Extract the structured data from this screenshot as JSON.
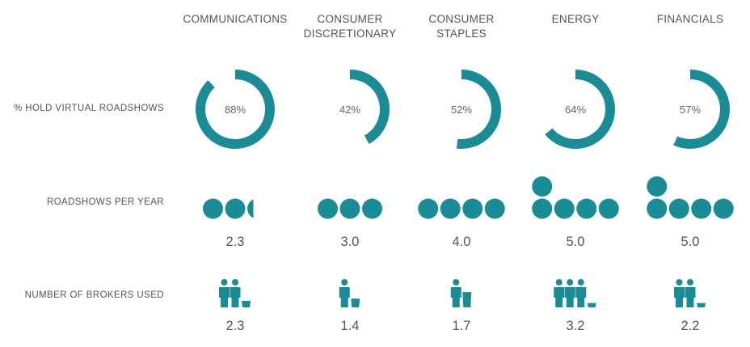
{
  "chart_data": {
    "type": "infographic",
    "accent_color": "#1a8c96",
    "sectors": [
      "COMMUNICATIONS",
      "CONSUMER\nDISCRETIONARY",
      "CONSUMER\nSTAPLES",
      "ENERGY",
      "FINANCIALS"
    ],
    "rows": [
      {
        "label": "% HOLD VIRTUAL ROADSHOWS",
        "type": "donut",
        "values": [
          88,
          42,
          52,
          64,
          57
        ],
        "value_labels": [
          "88%",
          "42%",
          "52%",
          "64%",
          "57%"
        ]
      },
      {
        "label": "ROADSHOWS PER YEAR",
        "type": "circle-pictogram",
        "values": [
          2.3,
          3.0,
          4.0,
          5.0,
          5.0
        ],
        "value_labels": [
          "2.3",
          "3.0",
          "4.0",
          "5.0",
          "5.0"
        ]
      },
      {
        "label": "NUMBER OF BROKERS USED",
        "type": "person-pictogram",
        "values": [
          2.3,
          1.4,
          1.7,
          3.2,
          2.2
        ],
        "value_labels": [
          "2.3",
          "1.4",
          "1.7",
          "3.2",
          "2.2"
        ]
      }
    ]
  }
}
